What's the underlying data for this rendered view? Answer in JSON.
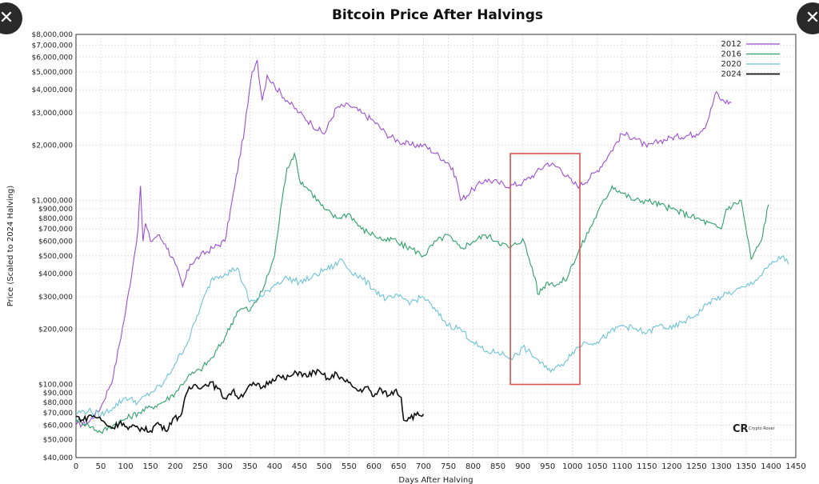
{
  "chart_data": {
    "type": "line",
    "title": "Bitcoin Price After Halvings",
    "xlabel": "Days After Halving",
    "ylabel": "Price (Scaled to 2024 Halving)",
    "yscale": "log",
    "xlim": [
      0,
      1450
    ],
    "ylim": [
      40000,
      8000000
    ],
    "x_ticks": [
      0,
      50,
      100,
      150,
      200,
      250,
      300,
      350,
      400,
      450,
      500,
      550,
      600,
      650,
      700,
      750,
      800,
      850,
      900,
      950,
      1000,
      1050,
      1100,
      1150,
      1200,
      1250,
      1300,
      1350,
      1400,
      1450
    ],
    "y_ticks": [
      {
        "v": 40000,
        "label": "$40,000"
      },
      {
        "v": 50000,
        "label": "$50,000"
      },
      {
        "v": 60000,
        "label": "$60,000"
      },
      {
        "v": 70000,
        "label": "$70,000"
      },
      {
        "v": 80000,
        "label": "$80,000"
      },
      {
        "v": 90000,
        "label": "$90,000"
      },
      {
        "v": 100000,
        "label": "$100,000"
      },
      {
        "v": 200000,
        "label": "$200,000"
      },
      {
        "v": 300000,
        "label": "$300,000"
      },
      {
        "v": 400000,
        "label": "$400,000"
      },
      {
        "v": 500000,
        "label": "$500,000"
      },
      {
        "v": 600000,
        "label": "$600,000"
      },
      {
        "v": 700000,
        "label": "$700,000"
      },
      {
        "v": 800000,
        "label": "$800,000"
      },
      {
        "v": 900000,
        "label": "$900,000"
      },
      {
        "v": 1000000,
        "label": "$1,000,000"
      },
      {
        "v": 2000000,
        "label": "$2,000,000"
      },
      {
        "v": 3000000,
        "label": "$3,000,000"
      },
      {
        "v": 4000000,
        "label": "$4,000,000"
      },
      {
        "v": 5000000,
        "label": "$5,000,000"
      },
      {
        "v": 6000000,
        "label": "$6,000,000"
      },
      {
        "v": 7000000,
        "label": "$7,000,000"
      },
      {
        "v": 8000000,
        "label": "$8,000,000"
      }
    ],
    "grid": true,
    "legend_position": "top-right",
    "series": [
      {
        "name": "2012",
        "color": "#9b4fd0",
        "x": [
          0,
          25,
          50,
          75,
          100,
          115,
          125,
          130,
          135,
          140,
          150,
          165,
          180,
          200,
          215,
          230,
          250,
          275,
          300,
          320,
          340,
          355,
          365,
          375,
          385,
          400,
          425,
          450,
          475,
          500,
          525,
          550,
          575,
          600,
          625,
          650,
          675,
          700,
          725,
          750,
          765,
          775,
          800,
          825,
          850,
          875,
          900,
          925,
          950,
          975,
          1000,
          1015,
          1050,
          1075,
          1100,
          1125,
          1150,
          1175,
          1200,
          1250,
          1270,
          1290,
          1300,
          1320
        ],
        "y": [
          60000,
          62000,
          75000,
          110000,
          250000,
          450000,
          700000,
          1200000,
          600000,
          750000,
          600000,
          650000,
          580000,
          450000,
          340000,
          450000,
          500000,
          550000,
          600000,
          1200000,
          2500000,
          5000000,
          5800000,
          3500000,
          4800000,
          4200000,
          3500000,
          3000000,
          2600000,
          2300000,
          3200000,
          3300000,
          3000000,
          2700000,
          2300000,
          2100000,
          2000000,
          2000000,
          1800000,
          1600000,
          1350000,
          1000000,
          1150000,
          1300000,
          1250000,
          1200000,
          1250000,
          1400000,
          1600000,
          1500000,
          1250000,
          1200000,
          1450000,
          1800000,
          2300000,
          2200000,
          1950000,
          2100000,
          2200000,
          2300000,
          2600000,
          3900000,
          3500000,
          3400000
        ]
      },
      {
        "name": "2016",
        "color": "#2e9f6a",
        "x": [
          0,
          25,
          50,
          75,
          100,
          125,
          150,
          175,
          200,
          225,
          250,
          275,
          300,
          325,
          340,
          350,
          375,
          400,
          415,
          425,
          440,
          450,
          475,
          500,
          525,
          550,
          575,
          600,
          625,
          640,
          650,
          675,
          700,
          725,
          750,
          760,
          775,
          800,
          825,
          850,
          875,
          900,
          925,
          930,
          950,
          970,
          990,
          1000,
          1050,
          1080,
          1100,
          1125,
          1150,
          1200,
          1250,
          1300,
          1310,
          1340,
          1360,
          1380,
          1395
        ],
        "y": [
          65000,
          60000,
          55000,
          60000,
          65000,
          70000,
          75000,
          80000,
          90000,
          110000,
          120000,
          140000,
          180000,
          250000,
          260000,
          250000,
          320000,
          500000,
          1000000,
          1500000,
          1800000,
          1300000,
          1100000,
          900000,
          800000,
          850000,
          700000,
          650000,
          600000,
          620000,
          580000,
          550000,
          500000,
          600000,
          650000,
          600000,
          550000,
          600000,
          650000,
          600000,
          550000,
          620000,
          380000,
          310000,
          360000,
          350000,
          380000,
          450000,
          850000,
          1200000,
          1100000,
          1000000,
          1000000,
          900000,
          800000,
          700000,
          900000,
          1000000,
          480000,
          600000,
          950000
        ]
      },
      {
        "name": "2020",
        "color": "#6ec3d6",
        "x": [
          0,
          25,
          50,
          75,
          100,
          125,
          150,
          175,
          200,
          225,
          250,
          275,
          300,
          325,
          350,
          375,
          400,
          425,
          450,
          475,
          500,
          520,
          535,
          550,
          575,
          600,
          625,
          650,
          675,
          700,
          725,
          750,
          775,
          800,
          825,
          850,
          875,
          890,
          900,
          925,
          950,
          975,
          1000,
          1025,
          1050,
          1075,
          1100,
          1125,
          1150,
          1175,
          1200,
          1225,
          1250,
          1275,
          1300,
          1325,
          1350,
          1375,
          1400,
          1425,
          1435
        ],
        "y": [
          70000,
          72000,
          68000,
          75000,
          85000,
          80000,
          90000,
          100000,
          130000,
          170000,
          260000,
          380000,
          400000,
          430000,
          280000,
          300000,
          350000,
          380000,
          360000,
          380000,
          420000,
          440000,
          480000,
          420000,
          380000,
          330000,
          290000,
          300000,
          280000,
          300000,
          250000,
          210000,
          200000,
          170000,
          150000,
          150000,
          140000,
          145000,
          160000,
          140000,
          120000,
          125000,
          150000,
          170000,
          170000,
          190000,
          210000,
          200000,
          190000,
          210000,
          200000,
          220000,
          240000,
          280000,
          300000,
          320000,
          340000,
          380000,
          450000,
          500000,
          450000
        ]
      },
      {
        "name": "2024",
        "color": "#111111",
        "x": [
          0,
          15,
          30,
          45,
          60,
          75,
          90,
          105,
          120,
          135,
          150,
          165,
          180,
          195,
          210,
          225,
          240,
          255,
          270,
          285,
          300,
          315,
          330,
          345,
          360,
          375,
          390,
          405,
          420,
          435,
          450,
          465,
          480,
          495,
          510,
          525,
          540,
          555,
          570,
          585,
          600,
          615,
          630,
          645,
          655,
          660,
          670,
          685,
          700
        ],
        "y": [
          67000,
          64000,
          68000,
          66000,
          61000,
          58000,
          63000,
          57000,
          59000,
          57000,
          56000,
          62000,
          56000,
          65000,
          67000,
          92000,
          100000,
          97000,
          103000,
          95000,
          84000,
          92000,
          85000,
          95000,
          100000,
          96000,
          104000,
          111000,
          107000,
          112000,
          117000,
          110000,
          118000,
          114000,
          106000,
          115000,
          105000,
          99000,
          92000,
          97000,
          86000,
          94000,
          87000,
          94000,
          85000,
          64000,
          66000,
          68000,
          69000
        ]
      }
    ],
    "annotations": [
      {
        "type": "rectangle",
        "x0": 875,
        "x1": 1015,
        "y0": 100000,
        "y1": 1800000,
        "color": "#d9534f"
      }
    ]
  },
  "ui": {
    "close_left_icon": "close-icon",
    "close_right_icon": "close-icon",
    "close_glyph": "✕",
    "watermark_text": "Crypto Rover",
    "watermark_mark": "CR"
  }
}
